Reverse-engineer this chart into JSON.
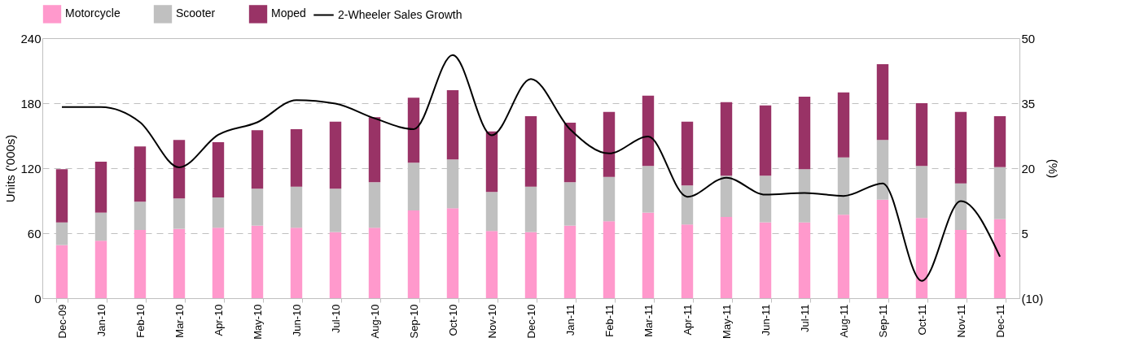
{
  "chart_data": {
    "type": "bar",
    "stacked": true,
    "categories": [
      "Dec-09",
      "Jan-10",
      "Feb-10",
      "Mar-10",
      "Apr-10",
      "May-10",
      "Jun-10",
      "Jul-10",
      "Aug-10",
      "Sep-10",
      "Oct-10",
      "Nov-10",
      "Dec-10",
      "Jan-11",
      "Feb-11",
      "Mar-11",
      "Apr-11",
      "May-11",
      "Jun-11",
      "Jul-11",
      "Aug-11",
      "Sep-11",
      "Oct-11",
      "Nov-11",
      "Dec-11"
    ],
    "ylabel": "Units ('000s)",
    "y2label": "(%)",
    "ylim": [
      0,
      240
    ],
    "yticks": [
      0,
      60,
      120,
      180,
      240
    ],
    "y2lim": [
      -10,
      50
    ],
    "y2ticks": [
      {
        "value": -10,
        "label": "(10)"
      },
      5,
      20,
      35,
      50
    ],
    "grid": "y",
    "legend": "top",
    "series": [
      {
        "name": "Motorcycle",
        "color": "#ff99cc",
        "values": [
          49,
          53,
          63,
          64,
          65,
          67,
          65,
          61,
          65,
          81,
          83,
          62,
          61,
          67,
          71,
          79,
          68,
          75,
          70,
          70,
          77,
          91,
          74,
          63,
          73
        ]
      },
      {
        "name": "Scooter",
        "color": "#c0c0c0",
        "values": [
          21,
          26,
          26,
          28,
          28,
          34,
          38,
          40,
          42,
          44,
          45,
          36,
          42,
          40,
          41,
          43,
          36,
          38,
          43,
          49,
          53,
          55,
          48,
          43,
          48
        ]
      },
      {
        "name": "Moped",
        "color": "#993366",
        "values": [
          49,
          47,
          51,
          54,
          51,
          54,
          53,
          62,
          60,
          60,
          64,
          56,
          65,
          55,
          60,
          65,
          59,
          68,
          65,
          67,
          60,
          70,
          58,
          66,
          47
        ]
      },
      {
        "name": "2-Wheeler Sales Growth",
        "type": "line",
        "axis": "y2",
        "color": "#000000",
        "values": [
          34.1,
          34.1,
          30.6,
          20.2,
          27.7,
          30.6,
          35.7,
          34.9,
          31.5,
          29,
          46.1,
          27.6,
          40.6,
          29,
          23.4,
          27.3,
          13.4,
          17.8,
          13.9,
          14.3,
          13.6,
          16.5,
          -6,
          12.4,
          -0.4
        ]
      }
    ]
  }
}
